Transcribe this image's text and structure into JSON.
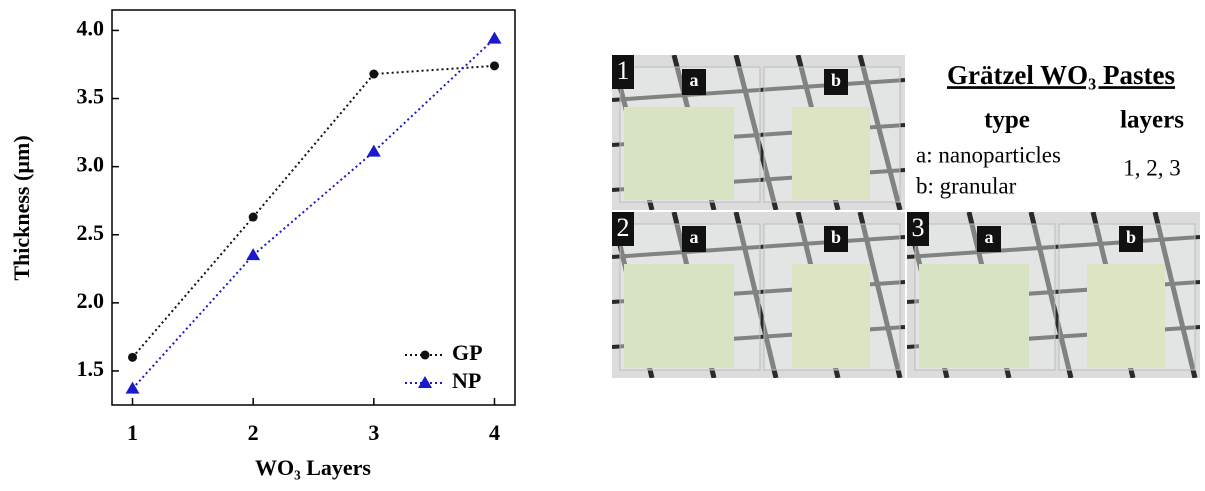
{
  "chart_data": {
    "type": "line",
    "x": [
      1,
      2,
      3,
      4
    ],
    "series": [
      {
        "name": "GP",
        "color": "#111111",
        "marker": "circle",
        "values": [
          1.6,
          2.63,
          3.68,
          3.74
        ]
      },
      {
        "name": "NP",
        "color": "#1a1acc",
        "marker": "triangle",
        "values": [
          1.37,
          2.35,
          3.11,
          3.94
        ]
      }
    ],
    "xlabel": "WO₃ Layers",
    "ylabel": "Thickness (µm)",
    "xlim": [
      0.83,
      4.17
    ],
    "ylim": [
      1.25,
      4.15
    ],
    "xticks": [
      1,
      2,
      3,
      4
    ],
    "yticks": [
      1.5,
      {
        "value": 2,
        "label": "2.0"
      },
      2.5,
      {
        "value": 3,
        "label": "3.0"
      },
      3.5,
      {
        "value": 4,
        "label": "4.0"
      }
    ],
    "grid": false,
    "legend": "lower right"
  },
  "panel": {
    "title": "Grätzel WO₃ Pastes",
    "columns": [
      "type",
      "layers"
    ],
    "types": [
      "a: nanoparticles",
      "b: granular"
    ],
    "layers": "1, 2, 3",
    "photos": [
      {
        "number": "1",
        "samples": [
          "a",
          "b"
        ]
      },
      {
        "number": "2",
        "samples": [
          "a",
          "b"
        ]
      },
      {
        "number": "3",
        "samples": [
          "a",
          "b"
        ]
      }
    ]
  }
}
